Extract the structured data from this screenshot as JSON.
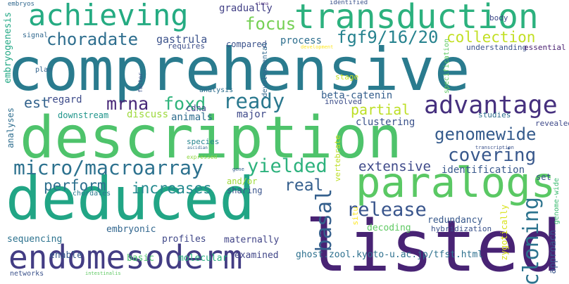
{
  "words": [
    {
      "text": "comprehensive",
      "color": "#2a7b8e"
    },
    {
      "text": "description",
      "color": "#4ec36b"
    },
    {
      "text": "deduced",
      "color": "#21a585"
    },
    {
      "text": "listed",
      "color": "#482374"
    },
    {
      "text": "endomesoderm",
      "color": "#433d84"
    },
    {
      "text": "paralogs",
      "color": "#5ac864"
    },
    {
      "text": "achieving",
      "color": "#25ab82"
    },
    {
      "text": "transduction",
      "color": "#2cb17e"
    },
    {
      "text": "advantage",
      "color": "#46307e"
    },
    {
      "text": "micro/macroarray",
      "color": "#2c718e"
    },
    {
      "text": "choradate",
      "color": "#2e6e8e"
    },
    {
      "text": "fgf9/16/20",
      "color": "#26828e"
    },
    {
      "text": "collection",
      "color": "#c2df23"
    },
    {
      "text": "mrna",
      "color": "#482878"
    },
    {
      "text": "foxd",
      "color": "#2fb47c"
    },
    {
      "text": "ready",
      "color": "#2a788e"
    },
    {
      "text": "focus",
      "color": "#75d054"
    },
    {
      "text": "partial",
      "color": "#bddf26"
    },
    {
      "text": "genomewide",
      "color": "#365c8d"
    },
    {
      "text": "covering",
      "color": "#38588c"
    },
    {
      "text": "yielded",
      "color": "#2db27d"
    },
    {
      "text": "extensive",
      "color": "#3e4989"
    },
    {
      "text": "release",
      "color": "#39558c"
    },
    {
      "text": "basal",
      "color": "#35608d"
    },
    {
      "text": "cloning",
      "color": "#2c738e"
    },
    {
      "text": "perform",
      "color": "#2d708e"
    },
    {
      "text": "increases",
      "color": "#23898e"
    },
    {
      "text": "real",
      "color": "#355f8d"
    },
    {
      "text": "est",
      "color": "#33638d"
    },
    {
      "text": "gastrula",
      "color": "#3b528b"
    },
    {
      "text": "gradually",
      "color": "#424086"
    },
    {
      "text": "process",
      "color": "#2e6f8e"
    },
    {
      "text": "embryogenesis",
      "color": "#22a884"
    },
    {
      "text": "regard",
      "color": "#3e4c8a"
    },
    {
      "text": "discuss",
      "color": "#9dd93b"
    },
    {
      "text": "cdna",
      "color": "#3f4788"
    },
    {
      "text": "major",
      "color": "#3e4989"
    },
    {
      "text": "animals",
      "color": "#2e6d8e"
    },
    {
      "text": "beta-catenin",
      "color": "#355f8d"
    },
    {
      "text": "clustering",
      "color": "#3b528b"
    },
    {
      "text": "identification",
      "color": "#38588c"
    },
    {
      "text": "compared",
      "color": "#3b528b"
    },
    {
      "text": "requires",
      "color": "#3d4e8a"
    },
    {
      "text": "understanding",
      "color": "#3b528b"
    },
    {
      "text": "essential",
      "color": "#481f70"
    },
    {
      "text": "body",
      "color": "#3e4989"
    },
    {
      "text": "analyses",
      "color": "#2e6d8e"
    },
    {
      "text": "downstream",
      "color": "#1f958b"
    },
    {
      "text": "species",
      "color": "#25848e"
    },
    {
      "text": "and/or",
      "color": "#a0da39"
    },
    {
      "text": "sharing",
      "color": "#3a548c"
    },
    {
      "text": "chordates",
      "color": "#2a788e"
    },
    {
      "text": "embryonic",
      "color": "#31668e"
    },
    {
      "text": "profiles",
      "color": "#3f4788"
    },
    {
      "text": "maternally",
      "color": "#414487"
    },
    {
      "text": "sequencing",
      "color": "#2c728e"
    },
    {
      "text": "enable",
      "color": "#38598c"
    },
    {
      "text": "basic",
      "color": "#4ac16d"
    },
    {
      "text": "molecular",
      "color": "#29af7f"
    },
    {
      "text": "examined",
      "color": "#404688"
    },
    {
      "text": "ghost.zool.kyoto-u.ac.jp/tfst.html",
      "color": "#2d708e"
    },
    {
      "text": "redundancy",
      "color": "#38598c"
    },
    {
      "text": "decoding",
      "color": "#5ec962"
    },
    {
      "text": "hybridization",
      "color": "#3b528b"
    },
    {
      "text": "situ",
      "color": "#fde725"
    },
    {
      "text": "vertebrate",
      "color": "#bddf26"
    },
    {
      "text": "zygotically",
      "color": "#d8e219"
    },
    {
      "text": "approach",
      "color": "#39568c"
    },
    {
      "text": "genome-wide",
      "color": "#3fbc73"
    },
    {
      "text": "revealed",
      "color": "#3e4989"
    },
    {
      "text": "studies",
      "color": "#2e6d8e"
    },
    {
      "text": "set",
      "color": "#3b528b"
    },
    {
      "text": "specification",
      "color": "#5ec962"
    },
    {
      "text": "stage",
      "color": "#c8e020"
    },
    {
      "text": "developmental",
      "color": "#31688e"
    },
    {
      "text": "analysis",
      "color": "#2e6e8e"
    },
    {
      "text": "factor",
      "color": "#3b528b"
    },
    {
      "text": "plan",
      "color": "#33638d"
    },
    {
      "text": "signal",
      "color": "#31688e"
    },
    {
      "text": "involved",
      "color": "#3d4e8a"
    },
    {
      "text": "networks",
      "color": "#3b528b"
    },
    {
      "text": "intestinalis",
      "color": "#5ec962"
    },
    {
      "text": "embryos",
      "color": "#31688e"
    },
    {
      "text": "ciona",
      "color": "#482878"
    },
    {
      "text": "identified",
      "color": "#3b528b"
    },
    {
      "text": "development",
      "color": "#fde725"
    },
    {
      "text": "expressed",
      "color": "#90d743"
    },
    {
      "text": "gene",
      "color": "#35608d"
    },
    {
      "text": "ascidian",
      "color": "#31688e"
    },
    {
      "text": "transcription",
      "color": "#3b528b"
    }
  ]
}
